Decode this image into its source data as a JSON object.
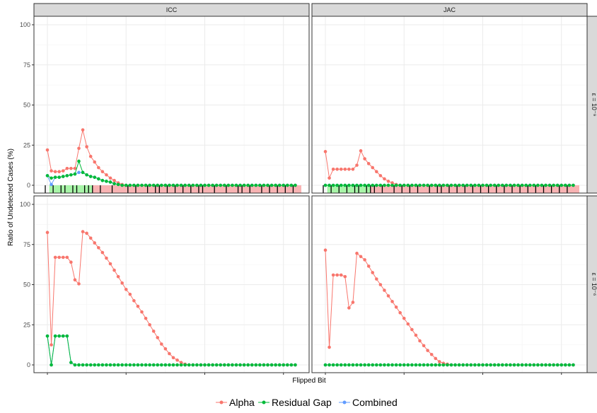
{
  "chart_data": {
    "type": "line",
    "xlabel": "Flipped Bit",
    "ylabel": "Ratio of Undetected Cases (%)",
    "ylim": [
      0,
      100
    ],
    "yticks": [
      "0",
      "25",
      "50",
      "75",
      "100"
    ],
    "xlim": [
      0,
      64
    ],
    "grid": true,
    "legend_position": "bottom",
    "columns": [
      "ICC",
      "JAC"
    ],
    "rows": [
      "ε = 10⁻⁹",
      "ε = 10⁻⁶"
    ],
    "colors": {
      "Alpha": "#F8766D",
      "Residual Gap": "#00BA38",
      "Combined": "#619CFF"
    },
    "legend": [
      "Alpha",
      "Residual Gap",
      "Combined"
    ],
    "panels": [
      {
        "col": 0,
        "row": 0,
        "series": [
          {
            "name": "Alpha",
            "values": [
              22,
              9,
              8.5,
              8.5,
              9,
              10.5,
              10.5,
              10.5,
              23,
              34.5,
              24,
              18,
              14.5,
              11,
              8.5,
              6.5,
              4.5,
              3,
              1.5,
              0.5,
              0,
              0,
              0,
              0,
              0,
              0,
              0,
              0,
              0,
              0,
              0,
              0,
              0,
              0,
              0,
              0,
              0,
              0,
              0,
              0,
              0,
              0,
              0,
              0,
              0,
              0,
              0,
              0,
              0,
              0,
              0,
              0,
              0,
              0,
              0,
              0,
              0,
              0,
              0,
              0,
              0,
              0,
              0,
              0
            ]
          },
          {
            "name": "Combined",
            "values": [
              6,
              0.5,
              5,
              5,
              5.5,
              6,
              6.5,
              7,
              8,
              8,
              6.5,
              5.5,
              5,
              4,
              3,
              2.5,
              2,
              1,
              0.5,
              0,
              0,
              0,
              0,
              0,
              0,
              0,
              0,
              0,
              0,
              0,
              0,
              0,
              0,
              0,
              0,
              0,
              0,
              0,
              0,
              0,
              0,
              0,
              0,
              0,
              0,
              0,
              0,
              0,
              0,
              0,
              0,
              0,
              0,
              0,
              0,
              0,
              0,
              0,
              0,
              0,
              0,
              0,
              0,
              0
            ]
          },
          {
            "name": "Residual Gap",
            "values": [
              6,
              4.5,
              5,
              5,
              5.5,
              6,
              6.5,
              7,
              15,
              8,
              6.5,
              5.5,
              5,
              4,
              3,
              2.5,
              2,
              1,
              0.5,
              0,
              0,
              0,
              0,
              0,
              0,
              0,
              0,
              0,
              0,
              0,
              0,
              0,
              0,
              0,
              0,
              0,
              0,
              0,
              0,
              0,
              0,
              0,
              0,
              0,
              0,
              0,
              0,
              0,
              0,
              0,
              0,
              0,
              0,
              0,
              0,
              0,
              0,
              0,
              0,
              0,
              0,
              0,
              0,
              0
            ]
          }
        ],
        "green_band": [
          1,
          12
        ],
        "red_band": [
          12,
          64
        ],
        "black_bars": [
          0,
          2,
          4,
          5,
          7,
          8,
          10,
          11,
          12,
          14,
          17,
          21,
          23,
          26,
          28,
          29,
          31,
          33,
          35,
          37,
          39,
          40,
          43,
          46,
          49,
          50,
          52,
          55,
          57,
          59,
          61,
          63
        ]
      },
      {
        "col": 1,
        "row": 0,
        "series": [
          {
            "name": "Alpha",
            "values": [
              21,
              4.5,
              10,
              10,
              10,
              10,
              10,
              10,
              12.5,
              21.5,
              16.5,
              13.5,
              11,
              8.5,
              6,
              4,
              2.5,
              1.5,
              0.5,
              0,
              0,
              0,
              0,
              0,
              0,
              0,
              0,
              0,
              0,
              0,
              0,
              0,
              0,
              0,
              0,
              0,
              0,
              0,
              0,
              0,
              0,
              0,
              0,
              0,
              0,
              0,
              0,
              0,
              0,
              0,
              0,
              0,
              0,
              0,
              0,
              0,
              0,
              0,
              0,
              0,
              0,
              0,
              0,
              0
            ]
          },
          {
            "name": "Combined",
            "values": [
              0,
              0,
              0,
              0,
              0,
              0,
              0,
              0,
              0,
              0,
              0,
              0,
              0,
              0,
              0,
              0,
              0,
              0,
              0,
              0,
              0,
              0,
              0,
              0,
              0,
              0,
              0,
              0,
              0,
              0,
              0,
              0,
              0,
              0,
              0,
              0,
              0,
              0,
              0,
              0,
              0,
              0,
              0,
              0,
              0,
              0,
              0,
              0,
              0,
              0,
              0,
              0,
              0,
              0,
              0,
              0,
              0,
              0,
              0,
              0,
              0,
              0,
              0,
              0
            ]
          },
          {
            "name": "Residual Gap",
            "values": [
              0,
              0,
              0,
              0,
              0,
              0,
              0,
              0,
              0,
              0,
              0,
              0,
              0,
              0,
              0,
              0,
              0,
              0,
              0,
              0,
              0,
              0,
              0,
              0,
              0,
              0,
              0,
              0,
              0,
              0,
              0,
              0,
              0,
              0,
              0,
              0,
              0,
              0,
              0,
              0,
              0,
              0,
              0,
              0,
              0,
              0,
              0,
              0,
              0,
              0,
              0,
              0,
              0,
              0,
              0,
              0,
              0,
              0,
              0,
              0,
              0,
              0,
              0,
              0
            ]
          }
        ],
        "green_band": [
          1,
          12
        ],
        "red_band": [
          12,
          64
        ],
        "black_bars": [
          0,
          2,
          4,
          6,
          8,
          9,
          11,
          12,
          13,
          15,
          18,
          20,
          22,
          24,
          27,
          29,
          30,
          32,
          34,
          36,
          38,
          40,
          42,
          44,
          46,
          48,
          50,
          52,
          54,
          56,
          58,
          60,
          62
        ]
      },
      {
        "col": 0,
        "row": 1,
        "series": [
          {
            "name": "Alpha",
            "values": [
              82.5,
              12.5,
              67,
              67,
              67,
              67,
              64,
              53,
              50.5,
              83,
              82,
              79,
              76,
              73,
              70,
              66.5,
              63,
              59,
              55,
              51,
              47,
              44,
              40,
              36.5,
              33,
              29,
              25,
              21,
              17,
              13,
              10,
              7,
              4.5,
              3,
              1.5,
              0.5,
              0,
              0,
              0,
              0,
              0,
              0,
              0,
              0,
              0,
              0,
              0,
              0,
              0,
              0,
              0,
              0,
              0,
              0,
              0,
              0,
              0,
              0,
              0,
              0,
              0,
              0,
              0,
              0
            ]
          },
          {
            "name": "Combined",
            "values": [
              18,
              0,
              18,
              18,
              18,
              18,
              1.5,
              0,
              0,
              0,
              0,
              0,
              0,
              0,
              0,
              0,
              0,
              0,
              0,
              0,
              0,
              0,
              0,
              0,
              0,
              0,
              0,
              0,
              0,
              0,
              0,
              0,
              0,
              0,
              0,
              0,
              0,
              0,
              0,
              0,
              0,
              0,
              0,
              0,
              0,
              0,
              0,
              0,
              0,
              0,
              0,
              0,
              0,
              0,
              0,
              0,
              0,
              0,
              0,
              0,
              0,
              0,
              0,
              0
            ]
          },
          {
            "name": "Residual Gap",
            "values": [
              18,
              0,
              18,
              18,
              18,
              18,
              1.5,
              0,
              0,
              0,
              0,
              0,
              0,
              0,
              0,
              0,
              0,
              0,
              0,
              0,
              0,
              0,
              0,
              0,
              0,
              0,
              0,
              0,
              0,
              0,
              0,
              0,
              0,
              0,
              0,
              0,
              0,
              0,
              0,
              0,
              0,
              0,
              0,
              0,
              0,
              0,
              0,
              0,
              0,
              0,
              0,
              0,
              0,
              0,
              0,
              0,
              0,
              0,
              0,
              0,
              0,
              0,
              0,
              0
            ]
          }
        ]
      },
      {
        "col": 1,
        "row": 1,
        "series": [
          {
            "name": "Alpha",
            "values": [
              71.5,
              11,
              56,
              56,
              56,
              55,
              35.5,
              39,
              69.5,
              67.5,
              65.5,
              61.5,
              57.5,
              53.5,
              50,
              46.5,
              43,
              39.5,
              36,
              32.5,
              29,
              25.5,
              22,
              18.5,
              15,
              12,
              9,
              6.5,
              4,
              2,
              1,
              0.5,
              0,
              0,
              0,
              0,
              0,
              0,
              0,
              0,
              0,
              0,
              0,
              0,
              0,
              0,
              0,
              0,
              0,
              0,
              0,
              0,
              0,
              0,
              0,
              0,
              0,
              0,
              0,
              0,
              0,
              0,
              0,
              0
            ]
          },
          {
            "name": "Combined",
            "values": [
              0,
              0,
              0,
              0,
              0,
              0,
              0,
              0,
              0,
              0,
              0,
              0,
              0,
              0,
              0,
              0,
              0,
              0,
              0,
              0,
              0,
              0,
              0,
              0,
              0,
              0,
              0,
              0,
              0,
              0,
              0,
              0,
              0,
              0,
              0,
              0,
              0,
              0,
              0,
              0,
              0,
              0,
              0,
              0,
              0,
              0,
              0,
              0,
              0,
              0,
              0,
              0,
              0,
              0,
              0,
              0,
              0,
              0,
              0,
              0,
              0,
              0,
              0,
              0
            ]
          },
          {
            "name": "Residual Gap",
            "values": [
              0,
              0,
              0,
              0,
              0,
              0,
              0,
              0,
              0,
              0,
              0,
              0,
              0,
              0,
              0,
              0,
              0,
              0,
              0,
              0,
              0,
              0,
              0,
              0,
              0,
              0,
              0,
              0,
              0,
              0,
              0,
              0,
              0,
              0,
              0,
              0,
              0,
              0,
              0,
              0,
              0,
              0,
              0,
              0,
              0,
              0,
              0,
              0,
              0,
              0,
              0,
              0,
              0,
              0,
              0,
              0,
              0,
              0,
              0,
              0,
              0,
              0,
              0,
              0
            ]
          }
        ]
      }
    ]
  }
}
